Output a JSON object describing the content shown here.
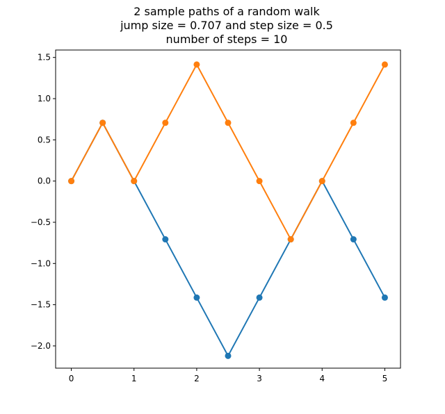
{
  "chart_data": {
    "type": "line",
    "title": [
      "2 sample paths of a random walk",
      "jump size = 0.707 and step size = 0.5",
      "number of steps = 10"
    ],
    "xlabel": "",
    "ylabel": "",
    "xlim": [
      -0.25,
      5.25
    ],
    "ylim": [
      -2.27,
      1.59
    ],
    "x": [
      0,
      0.5,
      1,
      1.5,
      2,
      2.5,
      3,
      3.5,
      4,
      4.5,
      5
    ],
    "x_ticks": [
      0,
      1,
      2,
      3,
      4,
      5
    ],
    "x_tick_labels": [
      "0",
      "1",
      "2",
      "3",
      "4",
      "5"
    ],
    "y_ticks": [
      1.5,
      1.0,
      0.5,
      0.0,
      -0.5,
      -1.0,
      -1.5,
      -2.0
    ],
    "y_tick_labels": [
      "1.5",
      "1.0",
      "0.5",
      "0.0",
      "−0.5",
      "−1.0",
      "−1.5",
      "−2.0"
    ],
    "grid": false,
    "legend": false,
    "series": [
      {
        "color": "#1f77b4",
        "values": [
          0,
          0.707,
          0,
          -0.707,
          -1.414,
          -2.121,
          -1.414,
          -0.707,
          0,
          -0.707,
          -1.414
        ]
      },
      {
        "color": "#ff7f0e",
        "values": [
          0,
          0.707,
          0,
          0.707,
          1.414,
          0.707,
          0,
          -0.707,
          0,
          0.707,
          1.414
        ]
      }
    ]
  }
}
